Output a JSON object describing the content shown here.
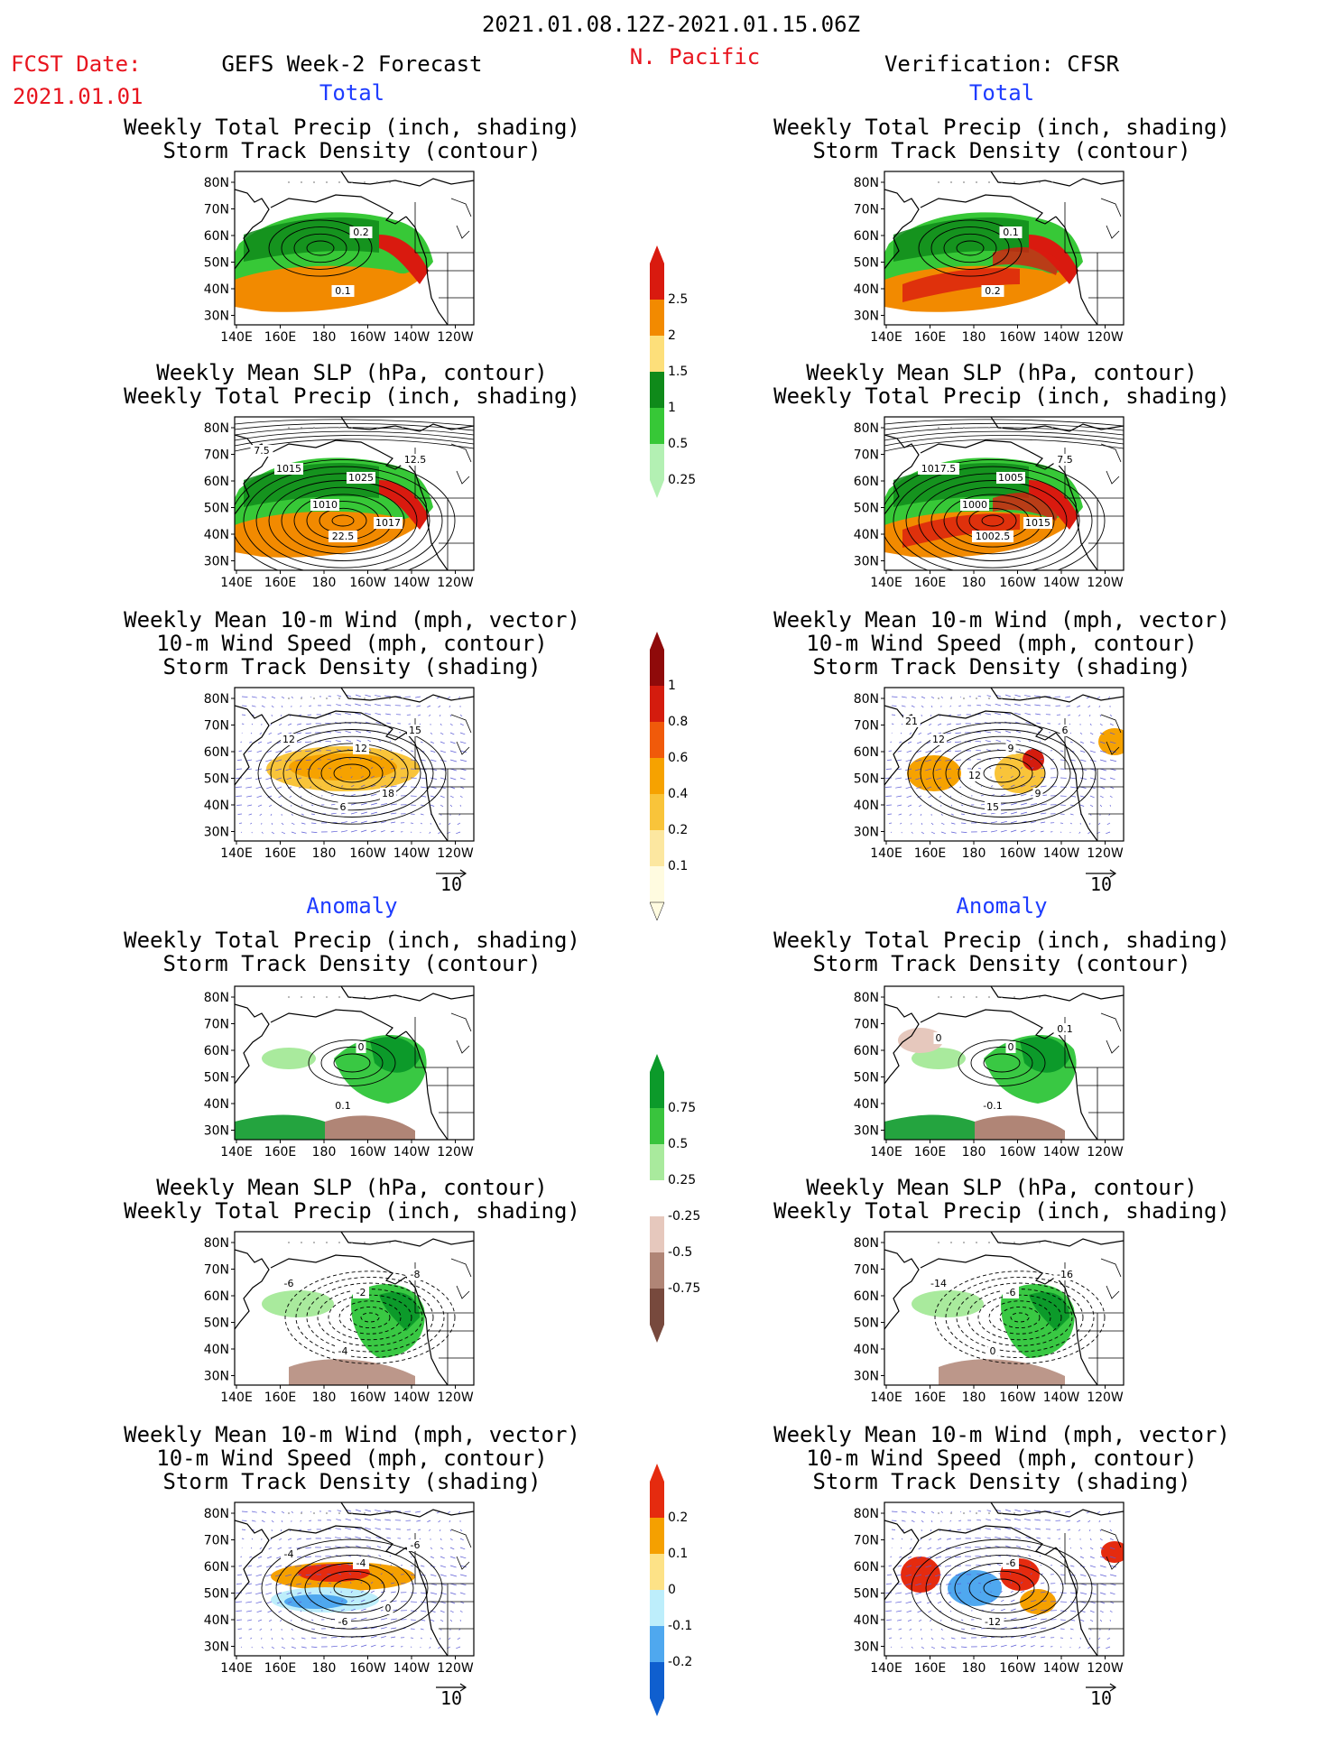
{
  "header": {
    "period": "2021.01.08.12Z-2021.01.15.06Z",
    "fcst_label": "FCST Date:",
    "fcst_date": "2021.01.01",
    "left_title": "GEFS Week-2 Forecast",
    "region": "N. Pacific",
    "right_title": "Verification: CFSR"
  },
  "sections": {
    "total": "Total",
    "anomaly": "Anomaly"
  },
  "panel_titles": {
    "precip": [
      "Weekly Total Precip (inch, shading)",
      "Storm Track Density (contour)"
    ],
    "slp": [
      "Weekly Mean SLP (hPa, contour)",
      "Weekly Total Precip (inch, shading)"
    ],
    "wind": [
      "Weekly Mean 10-m Wind (mph, vector)",
      "10-m Wind Speed (mph, contour)",
      "Storm Track Density (shading)"
    ]
  },
  "axes": {
    "lat_ticks": [
      "80N",
      "70N",
      "60N",
      "50N",
      "40N",
      "30N"
    ],
    "lon_ticks": [
      "140E",
      "160E",
      "180",
      "160W",
      "140W",
      "120W"
    ]
  },
  "vector_reference": "10",
  "contour_labels": {
    "left_total_precip": [
      "0.2",
      "0.1"
    ],
    "right_total_precip": [
      "0.1",
      "0.2"
    ],
    "left_total_slp": [
      "1025",
      "22.5",
      "1015",
      "12.5",
      "1017",
      "1010",
      "7.5"
    ],
    "right_total_slp": [
      "1005",
      "1002.5",
      "1017.5",
      "7.5",
      "1015",
      "1000"
    ],
    "left_total_wind": [
      "12",
      "6",
      "12",
      "15",
      "18"
    ],
    "right_total_wind": [
      "9",
      "15",
      "12",
      "6",
      "9",
      "12",
      "21"
    ],
    "left_anom_precip": [
      "0",
      "0.1"
    ],
    "right_anom_precip": [
      "0",
      "-0.1",
      "0",
      "0.1"
    ],
    "left_anom_slp": [
      "-2",
      "-4",
      "-6",
      "-8"
    ],
    "right_anom_slp": [
      "-6",
      "0",
      "-14",
      "-16"
    ],
    "left_anom_wind": [
      "-4",
      "-6",
      "-4",
      "-6",
      "0"
    ],
    "right_anom_wind": [
      "-6",
      "-12"
    ]
  },
  "colorbars": {
    "total_precip": {
      "labels": [
        "2.5",
        "2",
        "1.5",
        "1",
        "0.5",
        "0.25"
      ],
      "colors": [
        "#d91a0f",
        "#f28a00",
        "#fddf7a",
        "#0f8a1a",
        "#37c837",
        "#b3f0b3"
      ]
    },
    "total_storm_density": {
      "labels": [
        "1",
        "0.8",
        "0.6",
        "0.4",
        "0.2",
        "0.1"
      ],
      "colors": [
        "#8f0a0a",
        "#d41c0e",
        "#f05a0a",
        "#f6a200",
        "#f9c43a",
        "#fce7a0",
        "#fffbe0"
      ]
    },
    "anom_precip": {
      "labels": [
        "0.75",
        "0.5",
        "0.25",
        "-0.25",
        "-0.5",
        "-0.75"
      ],
      "colors": [
        "#0c9a2a",
        "#39c43d",
        "#a9ea9d",
        "#ffffff",
        "#e6c8bd",
        "#b08576",
        "#77493d"
      ]
    },
    "anom_storm_density": {
      "labels": [
        "0.2",
        "0.1",
        "0",
        "-0.1",
        "-0.2"
      ],
      "colors": [
        "#e52b0f",
        "#f5a000",
        "#fde287",
        "#bdeefb",
        "#4fa8ef",
        "#0f5fcf"
      ]
    }
  }
}
